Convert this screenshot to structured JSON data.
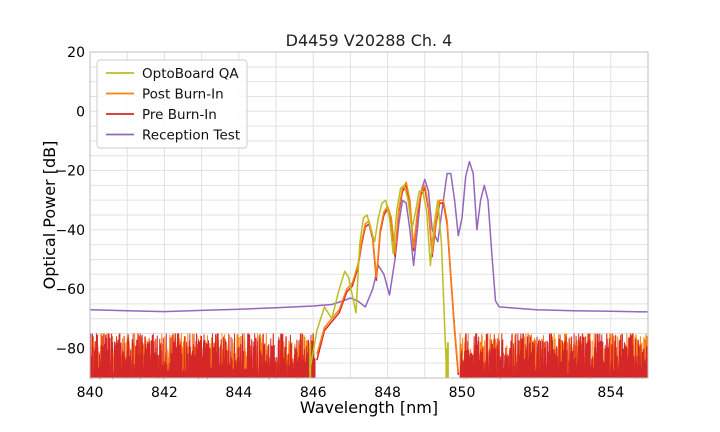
{
  "chart_data": {
    "type": "line",
    "title": "D4459 V20288 Ch. 4",
    "xlabel": "Wavelength [nm]",
    "ylabel": "Optical Power [dB]",
    "xlim": [
      840,
      855
    ],
    "ylim": [
      -90,
      20
    ],
    "xticks": [
      840,
      842,
      844,
      846,
      848,
      850,
      852,
      854
    ],
    "yticks": [
      20,
      0,
      -20,
      -40,
      -60,
      -80
    ],
    "ytick_labels": [
      "20",
      "0",
      "−20",
      "−40",
      "−60",
      "−80"
    ],
    "grid": true,
    "legend_position": "top-left",
    "noise_floor": {
      "range": [
        -90,
        -76
      ],
      "x_from": 840,
      "x_to": 855,
      "gap_from": 849.85,
      "gap_to": 850.1
    },
    "series": [
      {
        "name": "OptoBoard QA",
        "color": "#bcbd22",
        "points": [
          [
            845.9,
            -88
          ],
          [
            846.1,
            -74
          ],
          [
            846.3,
            -66
          ],
          [
            846.5,
            -70
          ],
          [
            846.7,
            -60
          ],
          [
            846.85,
            -54
          ],
          [
            846.95,
            -56
          ],
          [
            847.05,
            -62
          ],
          [
            847.15,
            -68
          ],
          [
            847.25,
            -45
          ],
          [
            847.35,
            -36
          ],
          [
            847.45,
            -35
          ],
          [
            847.55,
            -40
          ],
          [
            847.65,
            -44
          ],
          [
            847.75,
            -36
          ],
          [
            847.85,
            -31
          ],
          [
            847.95,
            -30
          ],
          [
            848.05,
            -36
          ],
          [
            848.15,
            -48
          ],
          [
            848.25,
            -33
          ],
          [
            848.35,
            -26
          ],
          [
            848.45,
            -25
          ],
          [
            848.55,
            -30
          ],
          [
            848.65,
            -40
          ],
          [
            848.75,
            -34
          ],
          [
            848.85,
            -27
          ],
          [
            848.95,
            -27
          ],
          [
            849.05,
            -34
          ],
          [
            849.15,
            -52
          ],
          [
            849.25,
            -38
          ],
          [
            849.35,
            -30
          ],
          [
            849.45,
            -45
          ],
          [
            849.55,
            -78
          ],
          [
            849.6,
            -90
          ]
        ]
      },
      {
        "name": "Post Burn-In",
        "color": "#ff7f0e",
        "points": [
          [
            846.1,
            -82
          ],
          [
            846.3,
            -73
          ],
          [
            846.5,
            -70
          ],
          [
            846.7,
            -67
          ],
          [
            846.9,
            -60
          ],
          [
            847.05,
            -58
          ],
          [
            847.2,
            -52
          ],
          [
            847.3,
            -44
          ],
          [
            847.4,
            -38
          ],
          [
            847.5,
            -37
          ],
          [
            847.6,
            -42
          ],
          [
            847.7,
            -56
          ],
          [
            847.8,
            -40
          ],
          [
            847.9,
            -34
          ],
          [
            848.0,
            -32
          ],
          [
            848.1,
            -36
          ],
          [
            848.2,
            -48
          ],
          [
            848.3,
            -33
          ],
          [
            848.4,
            -26
          ],
          [
            848.5,
            -24
          ],
          [
            848.6,
            -30
          ],
          [
            848.7,
            -46
          ],
          [
            848.8,
            -34
          ],
          [
            848.9,
            -27
          ],
          [
            849.0,
            -25
          ],
          [
            849.1,
            -32
          ],
          [
            849.2,
            -48
          ],
          [
            849.3,
            -37
          ],
          [
            849.4,
            -30
          ],
          [
            849.5,
            -30
          ],
          [
            849.6,
            -37
          ],
          [
            849.7,
            -55
          ],
          [
            849.8,
            -73
          ],
          [
            849.9,
            -88
          ]
        ]
      },
      {
        "name": "Pre Burn-In",
        "color": "#d62728",
        "points": [
          [
            846.1,
            -84
          ],
          [
            846.3,
            -74
          ],
          [
            846.5,
            -71
          ],
          [
            846.7,
            -68
          ],
          [
            846.9,
            -61
          ],
          [
            847.05,
            -59
          ],
          [
            847.2,
            -53
          ],
          [
            847.3,
            -45
          ],
          [
            847.4,
            -39
          ],
          [
            847.5,
            -38
          ],
          [
            847.6,
            -43
          ],
          [
            847.7,
            -57
          ],
          [
            847.8,
            -41
          ],
          [
            847.9,
            -35
          ],
          [
            848.0,
            -33
          ],
          [
            848.1,
            -37
          ],
          [
            848.2,
            -49
          ],
          [
            848.3,
            -34
          ],
          [
            848.4,
            -27
          ],
          [
            848.5,
            -25
          ],
          [
            848.6,
            -31
          ],
          [
            848.7,
            -47
          ],
          [
            848.8,
            -35
          ],
          [
            848.9,
            -28
          ],
          [
            849.0,
            -26
          ],
          [
            849.1,
            -33
          ],
          [
            849.2,
            -49
          ],
          [
            849.3,
            -38
          ],
          [
            849.4,
            -31
          ],
          [
            849.5,
            -31
          ],
          [
            849.6,
            -38
          ],
          [
            849.7,
            -56
          ],
          [
            849.8,
            -74
          ],
          [
            849.9,
            -89
          ]
        ]
      },
      {
        "name": "Reception Test",
        "color": "#9467bd",
        "points": [
          [
            840,
            -67
          ],
          [
            841,
            -67.3
          ],
          [
            842,
            -67.6
          ],
          [
            843,
            -67.2
          ],
          [
            844,
            -66.8
          ],
          [
            845,
            -66.3
          ],
          [
            846,
            -65.7
          ],
          [
            846.5,
            -65.2
          ],
          [
            846.8,
            -64
          ],
          [
            847.0,
            -63
          ],
          [
            847.2,
            -64
          ],
          [
            847.4,
            -66
          ],
          [
            847.6,
            -60
          ],
          [
            847.75,
            -52
          ],
          [
            847.9,
            -55
          ],
          [
            848.05,
            -62
          ],
          [
            848.2,
            -50
          ],
          [
            848.3,
            -38
          ],
          [
            848.4,
            -30
          ],
          [
            848.5,
            -31
          ],
          [
            848.6,
            -40
          ],
          [
            848.7,
            -52
          ],
          [
            848.8,
            -40
          ],
          [
            848.9,
            -27
          ],
          [
            849.0,
            -23
          ],
          [
            849.1,
            -27
          ],
          [
            849.2,
            -40
          ],
          [
            849.35,
            -44
          ],
          [
            849.5,
            -30
          ],
          [
            849.6,
            -21
          ],
          [
            849.7,
            -21
          ],
          [
            849.8,
            -30
          ],
          [
            849.9,
            -42
          ],
          [
            850.0,
            -36
          ],
          [
            850.1,
            -22
          ],
          [
            850.2,
            -17
          ],
          [
            850.3,
            -21
          ],
          [
            850.4,
            -40
          ],
          [
            850.5,
            -30
          ],
          [
            850.6,
            -25
          ],
          [
            850.7,
            -30
          ],
          [
            850.8,
            -48
          ],
          [
            850.9,
            -64
          ],
          [
            851.0,
            -66
          ],
          [
            852,
            -67
          ],
          [
            853,
            -67.3
          ],
          [
            854,
            -67.5
          ],
          [
            855,
            -67.7
          ]
        ]
      }
    ]
  }
}
